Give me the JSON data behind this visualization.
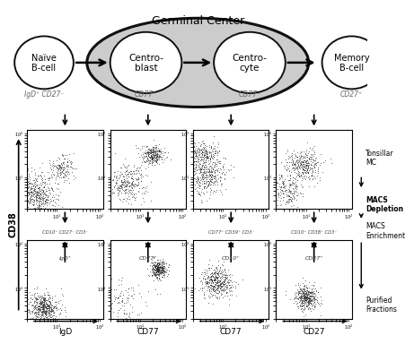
{
  "title": "Germinal Center",
  "cell_types": [
    "Naïve\nB-cell",
    "Centro-\nblast",
    "Centro-\ncyte",
    "Memory\nB-cell"
  ],
  "cell_markers": [
    "IgD⁺ CD27⁻",
    "CD77⁺",
    "CD77⁻",
    "CD27⁺"
  ],
  "depletion_labels": [
    "CD10⁺ CD27⁻ CD3⁻",
    "",
    "CD77⁺ CD39⁺ CD3⁻",
    "CD10⁺ CD38⁺ CD3⁻"
  ],
  "enrichment_labels": [
    "IgD⁺",
    "CD77⁺",
    "CD10⁺",
    "CD27⁺"
  ],
  "bottom_xlabels": [
    "IgD",
    "CD77",
    "CD77",
    "CD27"
  ],
  "ylabel": "CD38",
  "right_labels": [
    "Tonsillar\nMC",
    "MACS\nDepletion",
    "MACS\nEnrichment",
    "Purified\nFractions"
  ],
  "right_bold": [
    false,
    true,
    false,
    false
  ],
  "bg_color": "#ffffff",
  "scatter_color": "#222222",
  "germinal_fill": "#cccccc",
  "germinal_edge": "#111111"
}
